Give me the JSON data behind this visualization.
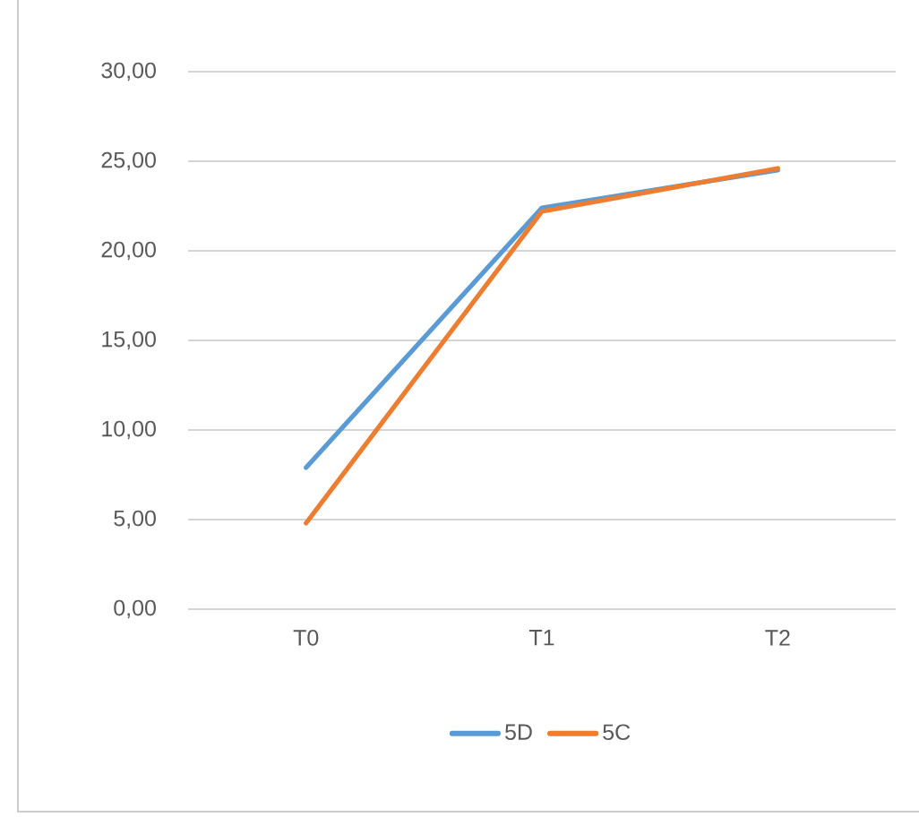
{
  "chart_data": {
    "type": "line",
    "categories": [
      "T0",
      "T1",
      "T2"
    ],
    "series": [
      {
        "name": "5D",
        "color": "#5b9bd5",
        "values": [
          7.9,
          22.4,
          24.5
        ]
      },
      {
        "name": "5C",
        "color": "#ed7d31",
        "values": [
          4.8,
          22.2,
          24.6
        ]
      }
    ],
    "ylim": [
      0,
      30
    ],
    "yticks": [
      {
        "value": 0,
        "label": "0,00"
      },
      {
        "value": 5,
        "label": "5,00"
      },
      {
        "value": 10,
        "label": "10,00"
      },
      {
        "value": 15,
        "label": "15,00"
      },
      {
        "value": 20,
        "label": "20,00"
      },
      {
        "value": 25,
        "label": "25,00"
      },
      {
        "value": 30,
        "label": "30,00"
      }
    ],
    "grid": "y",
    "legend": "bottom",
    "marker": "none",
    "line_style": "solid"
  }
}
